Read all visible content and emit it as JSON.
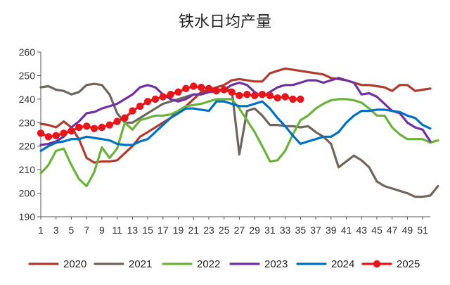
{
  "chart_data": {
    "type": "line",
    "title": "铁水日均产量",
    "xlabel": "",
    "ylabel": "",
    "ylim": [
      190,
      260
    ],
    "yticks": [
      190,
      200,
      210,
      220,
      230,
      240,
      250,
      260
    ],
    "xlim": [
      1,
      52
    ],
    "xticks": [
      1,
      3,
      5,
      7,
      9,
      11,
      13,
      15,
      17,
      19,
      21,
      23,
      25,
      27,
      29,
      31,
      33,
      35,
      37,
      39,
      41,
      43,
      45,
      47,
      49,
      51
    ],
    "grid": false,
    "legend": "bottom",
    "series": [
      {
        "name": "2020",
        "color": "#B03A2E",
        "marker": false,
        "values": [
          229.5,
          229,
          228,
          230.5,
          228,
          223,
          215,
          213,
          213.5,
          213.5,
          214,
          217,
          220,
          224,
          226,
          228,
          230,
          232,
          235,
          237,
          240,
          243,
          244,
          245,
          246,
          248,
          248.5,
          248,
          247.5,
          247.5,
          251,
          252,
          253,
          252.5,
          252,
          251.5,
          251,
          250.5,
          249,
          248.5,
          248,
          247,
          246,
          246,
          245.5,
          245,
          243.5,
          246,
          246,
          243.5,
          244,
          244.5
        ]
      },
      {
        "name": "2021",
        "color": "#6E665E",
        "marker": false,
        "values": [
          245,
          245.5,
          244,
          243.5,
          242,
          243,
          246,
          246.5,
          246,
          242,
          234,
          230,
          230,
          232,
          234,
          236,
          238,
          239,
          240,
          241,
          242,
          242,
          243,
          243,
          244,
          244,
          216.5,
          235,
          236,
          233,
          229,
          229,
          228.5,
          228.5,
          228,
          228.5,
          226,
          224,
          221,
          211,
          213.5,
          216,
          214,
          211,
          205,
          203,
          202,
          201,
          200,
          198.5,
          198.5,
          199,
          203
        ]
      },
      {
        "name": "2022",
        "color": "#6BB23A",
        "marker": false,
        "values": [
          208.5,
          212,
          218,
          219,
          212,
          206,
          203,
          209,
          219.5,
          215,
          219,
          230,
          227,
          231,
          232,
          233,
          233,
          233.5,
          235,
          237,
          237.5,
          238,
          239,
          240,
          240,
          240,
          236,
          231,
          226,
          220,
          213.5,
          214,
          218,
          225,
          231,
          233,
          236,
          238,
          239.5,
          240,
          240,
          239.5,
          238.5,
          236,
          233,
          233,
          228,
          225,
          223,
          223,
          223,
          221.5,
          222.5
        ]
      },
      {
        "name": "2023",
        "color": "#7030A0",
        "marker": false,
        "values": [
          220.5,
          221,
          222,
          224,
          228,
          230.5,
          234,
          234.5,
          236,
          237,
          238,
          240,
          242,
          245,
          246,
          245,
          242,
          240,
          239,
          240,
          242,
          242,
          243,
          244,
          244,
          246,
          247,
          246,
          243,
          241,
          243,
          245,
          246,
          246,
          247,
          248,
          248,
          247,
          248,
          249,
          248,
          247,
          242,
          242.5,
          241,
          238,
          235,
          234,
          230,
          228,
          227,
          222
        ]
      },
      {
        "name": "2024",
        "color": "#0070C0",
        "marker": false,
        "values": [
          218,
          220,
          221.5,
          222,
          223,
          223,
          224,
          223.5,
          223,
          222.5,
          221,
          220.5,
          220.5,
          222,
          223,
          226,
          229,
          232,
          234,
          236,
          236,
          235.5,
          235,
          239,
          239,
          238,
          237,
          237,
          238,
          239,
          236,
          232,
          228.5,
          224.5,
          221,
          222,
          223,
          224,
          224,
          226,
          230,
          233,
          235,
          235,
          235.5,
          235.5,
          235,
          234.5,
          233,
          232,
          229,
          227.5
        ]
      },
      {
        "name": "2025",
        "color": "#E8151B",
        "marker": true,
        "values": [
          225.5,
          224,
          224.5,
          225.5,
          226.5,
          228,
          228.5,
          227.5,
          228,
          229,
          230.5,
          232,
          235,
          237,
          239,
          240,
          241,
          242,
          243,
          244.5,
          245.5,
          245,
          244.5,
          243.5,
          244,
          243,
          241.5,
          242,
          241.5,
          242,
          241.5,
          240.5,
          241,
          240,
          240
        ]
      }
    ]
  }
}
